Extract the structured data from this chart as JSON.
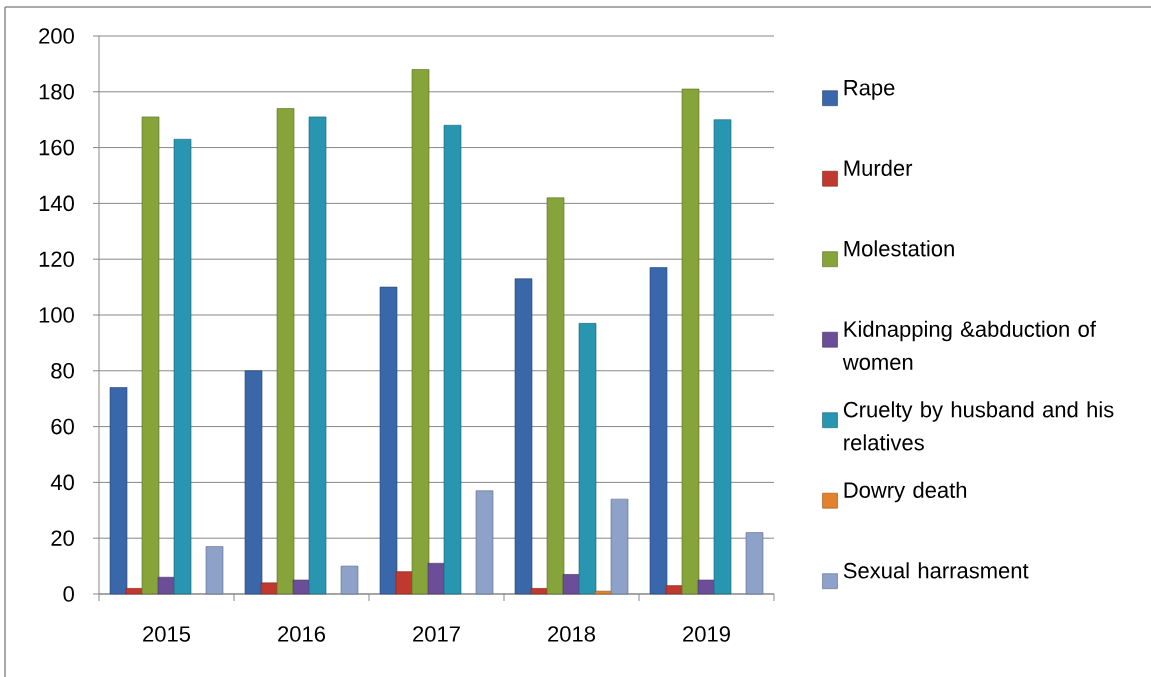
{
  "chart_data": {
    "type": "bar",
    "categories": [
      "2015",
      "2016",
      "2017",
      "2018",
      "2019"
    ],
    "series": [
      {
        "name": "Rape",
        "color": "#3a67aa",
        "values": [
          74,
          80,
          110,
          113,
          117
        ]
      },
      {
        "name": "Murder",
        "color": "#c0392f",
        "values": [
          2,
          4,
          8,
          2,
          3
        ]
      },
      {
        "name": "Molestation",
        "color": "#86a43a",
        "values": [
          171,
          174,
          188,
          142,
          181
        ]
      },
      {
        "name": "Kidnapping &abduction of women",
        "color": "#6b4e97",
        "values": [
          6,
          5,
          11,
          7,
          5
        ]
      },
      {
        "name": "Cruelty by husband and his relatives",
        "color": "#2896b0",
        "values": [
          163,
          171,
          168,
          97,
          170
        ]
      },
      {
        "name": "Dowry death",
        "color": "#e3822b",
        "values": [
          null,
          null,
          null,
          1,
          null
        ]
      },
      {
        "name": "Sexual harrasment",
        "color": "#8ea2c9",
        "values": [
          17,
          10,
          37,
          34,
          22
        ]
      }
    ],
    "ylim": [
      0,
      200
    ],
    "yticks": [
      0,
      20,
      40,
      60,
      80,
      100,
      120,
      140,
      160,
      180,
      200
    ],
    "grid": "y",
    "legend": "right"
  }
}
